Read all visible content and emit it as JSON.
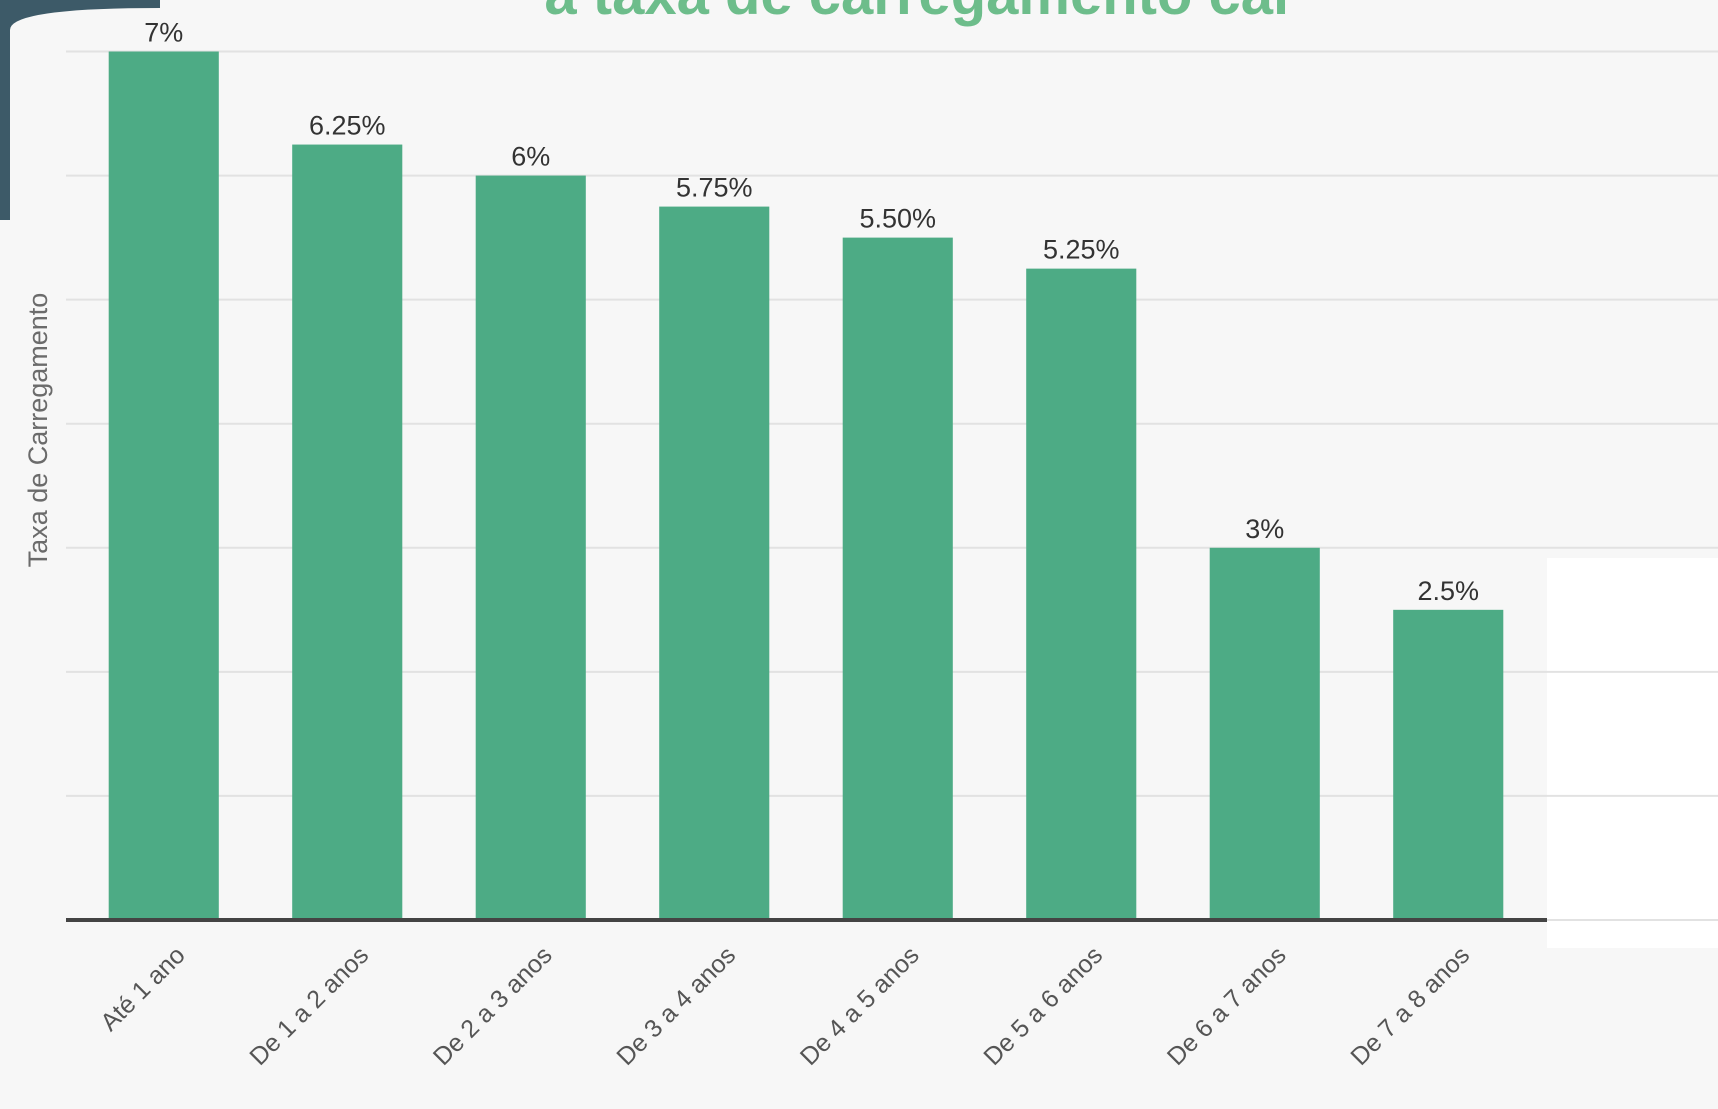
{
  "chart_data": {
    "type": "bar",
    "title": "a taxa de carregamento car",
    "y_label": "Taxa de Carregamento",
    "categories": [
      "Até 1 ano",
      "De 1 a 2 anos",
      "De 2 a 3 anos",
      "De 3 a 4 anos",
      "De 4 a 5 anos",
      "De 5 a 6 anos",
      "De 6 a 7 anos",
      "De 7 a 8 anos"
    ],
    "values": [
      7,
      6.25,
      6,
      5.75,
      5.5,
      5.25,
      3,
      2.5
    ],
    "value_labels": [
      "7%",
      "6.25%",
      "6%",
      "5.75%",
      "5.50%",
      "5.25%",
      "3%",
      "2.5%"
    ],
    "color": "#4dab85",
    "ylim": [
      0,
      7
    ],
    "yticks": [
      0,
      1,
      2,
      3,
      4,
      5,
      6,
      7
    ],
    "grid": true
  }
}
